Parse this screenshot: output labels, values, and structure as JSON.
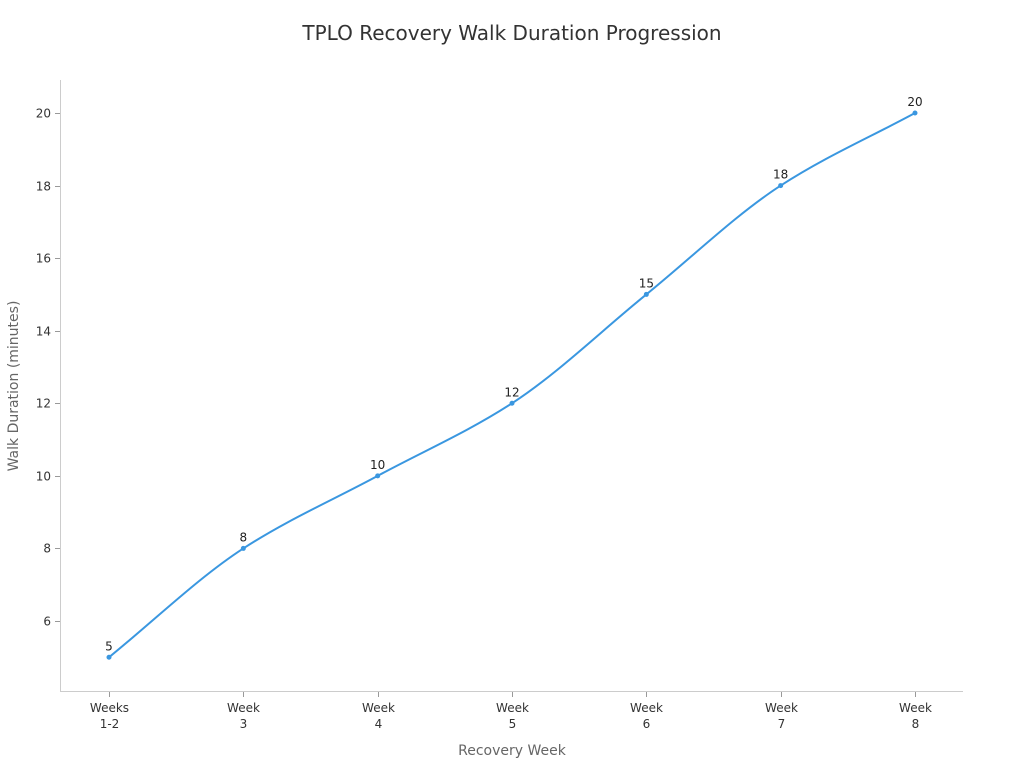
{
  "chart_data": {
    "type": "line",
    "title": "TPLO Recovery Walk Duration Progression",
    "xlabel": "Recovery Week",
    "ylabel": "Walk Duration (minutes)",
    "categories": [
      [
        "Weeks",
        "1-2"
      ],
      [
        "Week",
        "3"
      ],
      [
        "Week",
        "4"
      ],
      [
        "Week",
        "5"
      ],
      [
        "Week",
        "6"
      ],
      [
        "Week",
        "7"
      ],
      [
        "Week",
        "8"
      ]
    ],
    "category_labels": [
      "Weeks 1-2",
      "Week 3",
      "Week 4",
      "Week 5",
      "Week 6",
      "Week 7",
      "Week 8"
    ],
    "series": [
      {
        "name": "Walk Duration (minutes)",
        "values": [
          5,
          8,
          10,
          12,
          15,
          18,
          20
        ],
        "color": "#3a97e0"
      }
    ],
    "data_labels": [
      "5",
      "8",
      "10",
      "12",
      "15",
      "18",
      "20"
    ],
    "yticks": [
      6,
      8,
      10,
      12,
      14,
      16,
      18,
      20
    ],
    "ylim": [
      4.1,
      20.9
    ],
    "grid": false,
    "legend": null,
    "line_style": "smooth",
    "markers": true
  },
  "colors": {
    "line": "#3a97e0",
    "axis": "#cccccc",
    "text": "#333333",
    "axis_title": "#666666"
  }
}
